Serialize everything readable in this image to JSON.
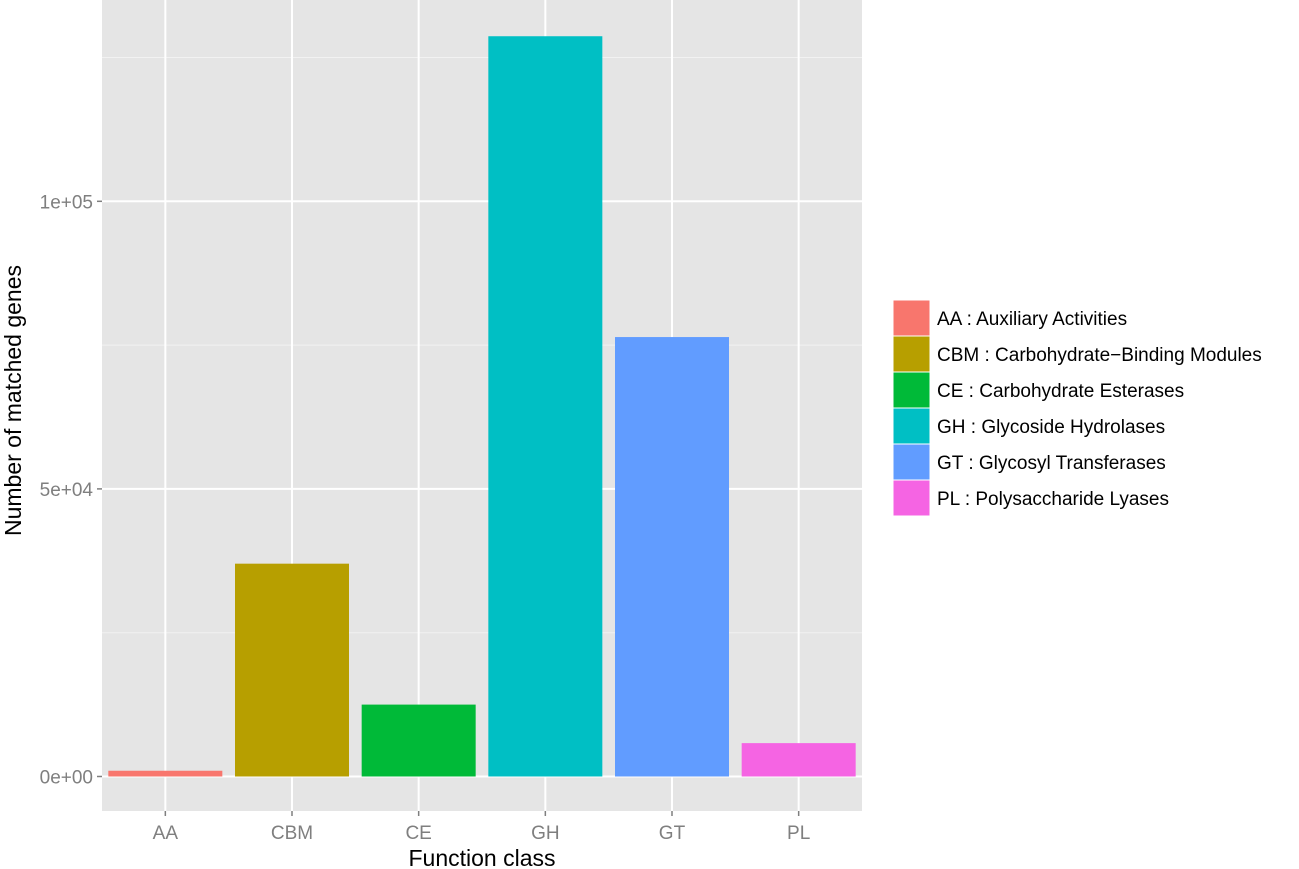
{
  "chart_data": {
    "type": "bar",
    "categories": [
      "AA",
      "CBM",
      "CE",
      "GH",
      "GT",
      "PL"
    ],
    "values": [
      1000,
      37000,
      12500,
      128700,
      76400,
      5800
    ],
    "colors": [
      "#F8766D",
      "#B79F00",
      "#00BA38",
      "#00BFC4",
      "#619CFF",
      "#F564E3"
    ],
    "xlabel": "Function class",
    "ylabel": "Number of matched genes",
    "ylim": [
      -6000,
      135000
    ],
    "yticks": [
      {
        "value": 0,
        "label": "0e+00"
      },
      {
        "value": 50000,
        "label": "5e+04"
      },
      {
        "value": 100000,
        "label": "1e+05"
      }
    ],
    "y_minor_gridlines": [
      25000,
      75000,
      125000
    ],
    "grid": true,
    "background": "#E5E5E5",
    "legend": {
      "position": "right",
      "entries": [
        "AA : Auxiliary Activities",
        "CBM : Carbohydrate−Binding Modules",
        "CE : Carbohydrate Esterases",
        "GH : Glycoside Hydrolases",
        "GT : Glycosyl Transferases",
        "PL : Polysaccharide Lyases"
      ]
    }
  }
}
